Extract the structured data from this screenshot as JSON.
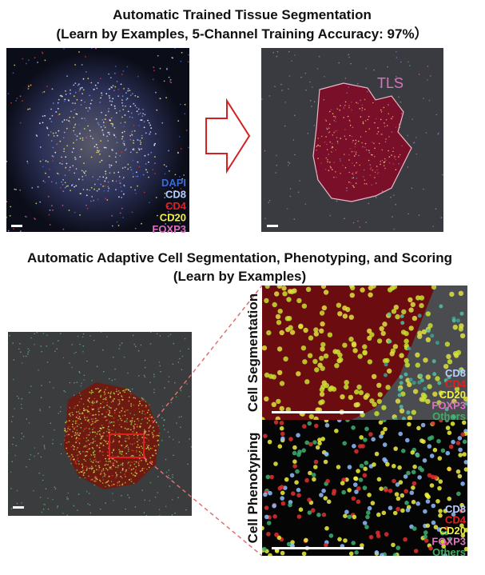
{
  "header": {
    "title": "Automatic Trained Tissue Segmentation",
    "subtitle": "(Learn by Examples, 5-Channel Training Accuracy: 97%）"
  },
  "tissue_panel": {
    "legend": [
      "DAPI",
      "CD8",
      "CD4",
      "CD20",
      "FOXP3"
    ],
    "region_label": "TLS"
  },
  "cell_section": {
    "title": "Automatic Adaptive Cell Segmentation, Phenotyping, and Scoring",
    "subtitle": "(Learn by Examples)"
  },
  "cell_segmentation": {
    "label": "Cell Segmentation",
    "legend": [
      "CD8",
      "CD4",
      "CD20",
      "FOXP3",
      "Others"
    ]
  },
  "cell_phenotyping": {
    "label": "Cell Phenotyping",
    "legend": [
      "CD8",
      "CD4",
      "CD20",
      "FOXP3",
      "Others"
    ]
  }
}
